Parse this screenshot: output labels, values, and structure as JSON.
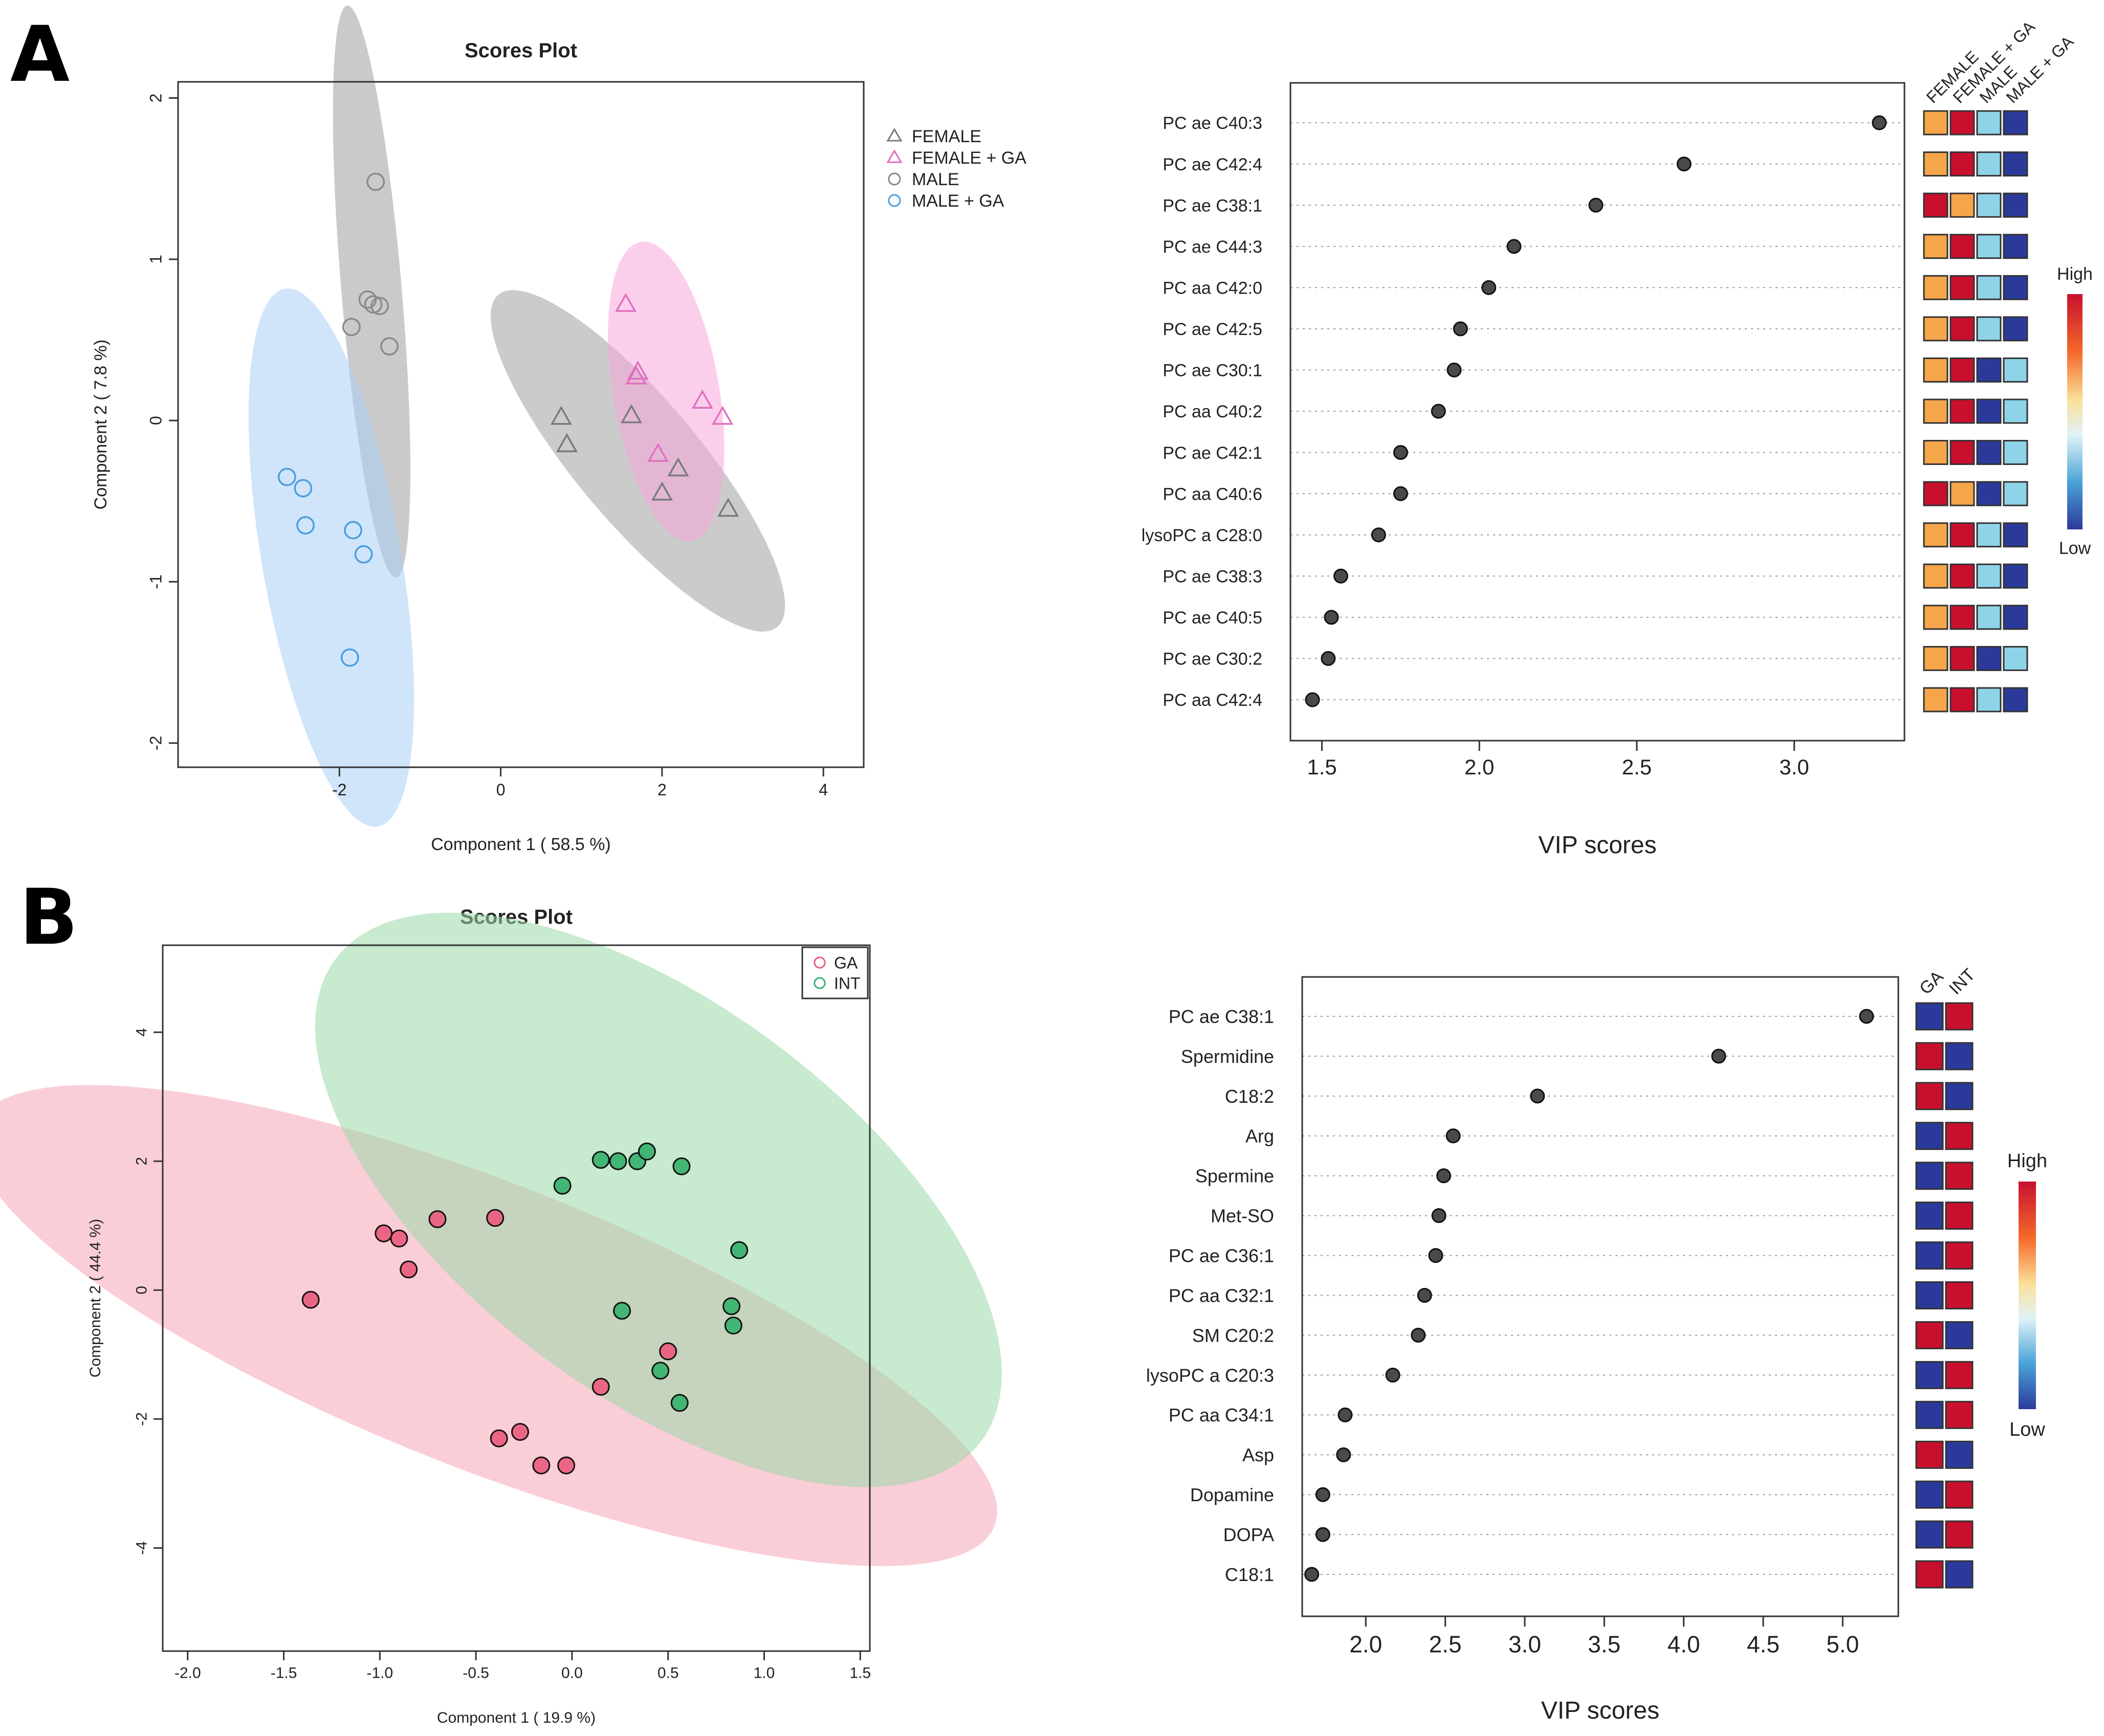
{
  "panels": {
    "a": "A",
    "b": "B"
  },
  "colors": {
    "female": "#7a7a7a",
    "female_ga": "#e070c0",
    "male": "#8a8a8a",
    "male_ga": "#4a9ee0",
    "ga": "#ea6080",
    "int": "#3cb371",
    "heat_dark_red": "#c8102e",
    "heat_orange": "#f5a54a",
    "heat_light_blue": "#8fd3e8",
    "heat_dark_blue": "#2b3a9a"
  },
  "chart_data": [
    {
      "id": "A_scores",
      "type": "scatter",
      "title": "Scores Plot",
      "xlabel": "Component 1 ( 58.5 %)",
      "ylabel": "Component 2 ( 7.8 %)",
      "xlim": [
        -4.0,
        4.5
      ],
      "ylim": [
        -2.15,
        2.1
      ],
      "xticks": [
        -2,
        0,
        2,
        4
      ],
      "yticks": [
        -2,
        -1,
        0,
        1,
        2
      ],
      "grid": false,
      "legend_position": "right",
      "series": [
        {
          "name": "FEMALE",
          "marker": "triangle",
          "color": "#7a7a7a",
          "points": [
            [
              0.75,
              0.02
            ],
            [
              0.82,
              -0.15
            ],
            [
              1.62,
              0.03
            ],
            [
              2.2,
              -0.3
            ],
            [
              2.0,
              -0.45
            ],
            [
              2.82,
              -0.55
            ]
          ],
          "ellipse": {
            "cx": 1.7,
            "cy": -0.25,
            "rx": 2.05,
            "ry": 0.5,
            "angle_deg": -28,
            "fill": "#a0a0a0"
          }
        },
        {
          "name": "FEMALE + GA",
          "marker": "triangle",
          "color": "#e070c0",
          "points": [
            [
              1.55,
              0.72
            ],
            [
              1.7,
              0.3
            ],
            [
              1.68,
              0.27
            ],
            [
              2.5,
              0.12
            ],
            [
              2.75,
              0.02
            ],
            [
              1.95,
              -0.21
            ]
          ],
          "ellipse": {
            "cx": 2.05,
            "cy": 0.18,
            "rx": 1.0,
            "ry": 0.62,
            "angle_deg": -62,
            "fill": "#f7a8dc"
          }
        },
        {
          "name": "MALE",
          "marker": "circle",
          "color": "#8a8a8a",
          "points": [
            [
              -1.55,
              1.48
            ],
            [
              -1.65,
              0.75
            ],
            [
              -1.58,
              0.72
            ],
            [
              -1.5,
              0.71
            ],
            [
              -1.85,
              0.58
            ],
            [
              -1.38,
              0.46
            ]
          ],
          "ellipse": {
            "cx": -1.6,
            "cy": 0.8,
            "rx": 1.8,
            "ry": 0.37,
            "angle_deg": -80,
            "fill": "#9e9e9e"
          }
        },
        {
          "name": "MALE + GA",
          "marker": "circle",
          "color": "#4a9ee0",
          "points": [
            [
              -2.65,
              -0.35
            ],
            [
              -2.45,
              -0.42
            ],
            [
              -2.42,
              -0.65
            ],
            [
              -1.83,
              -0.68
            ],
            [
              -1.7,
              -0.83
            ],
            [
              -1.87,
              -1.47
            ]
          ],
          "ellipse": {
            "cx": -2.1,
            "cy": -0.85,
            "rx": 1.78,
            "ry": 0.82,
            "angle_deg": -67,
            "fill": "#a9cff5"
          }
        }
      ]
    },
    {
      "id": "A_vip",
      "type": "dot",
      "xlabel": "VIP scores",
      "xlim": [
        1.4,
        3.35
      ],
      "xticks": [
        1.5,
        2.0,
        2.5,
        3.0
      ],
      "grid": "horizontal dotted",
      "categories": [
        "PC ae C40:3",
        "PC ae C42:4",
        "PC ae C38:1",
        "PC ae C44:3",
        "PC aa C42:0",
        "PC ae C42:5",
        "PC ae C30:1",
        "PC aa C40:2",
        "PC ae C42:1",
        "PC aa C40:6",
        "lysoPC a C28:0",
        "PC ae C38:3",
        "PC ae C40:5",
        "PC ae C30:2",
        "PC aa C42:4"
      ],
      "values": [
        3.27,
        2.65,
        2.37,
        2.11,
        2.03,
        1.94,
        1.92,
        1.87,
        1.75,
        1.75,
        1.68,
        1.56,
        1.53,
        1.52,
        1.47
      ],
      "heatmap": {
        "columns": [
          "FEMALE",
          "FEMALE + GA",
          "MALE",
          "MALE + GA"
        ],
        "cells": [
          [
            "#f5a54a",
            "#c8102e",
            "#8fd3e8",
            "#2b3a9a"
          ],
          [
            "#f5a54a",
            "#c8102e",
            "#8fd3e8",
            "#2b3a9a"
          ],
          [
            "#c8102e",
            "#f5a54a",
            "#8fd3e8",
            "#2b3a9a"
          ],
          [
            "#f5a54a",
            "#c8102e",
            "#8fd3e8",
            "#2b3a9a"
          ],
          [
            "#f5a54a",
            "#c8102e",
            "#8fd3e8",
            "#2b3a9a"
          ],
          [
            "#f5a54a",
            "#c8102e",
            "#8fd3e8",
            "#2b3a9a"
          ],
          [
            "#f5a54a",
            "#c8102e",
            "#2b3a9a",
            "#8fd3e8"
          ],
          [
            "#f5a54a",
            "#c8102e",
            "#2b3a9a",
            "#8fd3e8"
          ],
          [
            "#f5a54a",
            "#c8102e",
            "#2b3a9a",
            "#8fd3e8"
          ],
          [
            "#c8102e",
            "#f5a54a",
            "#2b3a9a",
            "#8fd3e8"
          ],
          [
            "#f5a54a",
            "#c8102e",
            "#8fd3e8",
            "#2b3a9a"
          ],
          [
            "#f5a54a",
            "#c8102e",
            "#8fd3e8",
            "#2b3a9a"
          ],
          [
            "#f5a54a",
            "#c8102e",
            "#8fd3e8",
            "#2b3a9a"
          ],
          [
            "#f5a54a",
            "#c8102e",
            "#2b3a9a",
            "#8fd3e8"
          ],
          [
            "#f5a54a",
            "#c8102e",
            "#8fd3e8",
            "#2b3a9a"
          ]
        ],
        "scale_high": "High",
        "scale_low": "Low"
      }
    },
    {
      "id": "B_scores",
      "type": "scatter",
      "title": "Scores Plot",
      "xlabel": "Component 1 ( 19.9 %)",
      "ylabel": "Component 2 ( 44.4 %)",
      "xlim": [
        -2.13,
        1.55
      ],
      "ylim": [
        -5.6,
        5.35
      ],
      "xticks": [
        -2.0,
        -1.5,
        -1.0,
        -0.5,
        0.0,
        0.5,
        1.0,
        1.5
      ],
      "xticklabels": [
        "-2.0",
        "-1.5",
        "-1.0",
        "-0.5",
        "0.0",
        "0.5",
        "1.0",
        "1.5"
      ],
      "yticks": [
        -4,
        -2,
        0,
        2,
        4
      ],
      "grid": false,
      "legend_position": "top-right",
      "series": [
        {
          "name": "GA",
          "marker": "circle",
          "color": "#ea6080",
          "points": [
            [
              -1.36,
              -0.15
            ],
            [
              -0.98,
              0.88
            ],
            [
              -0.9,
              0.8
            ],
            [
              -0.85,
              0.32
            ],
            [
              -0.7,
              1.1
            ],
            [
              -0.4,
              1.12
            ],
            [
              0.5,
              -0.95
            ],
            [
              0.15,
              -1.5
            ],
            [
              -0.27,
              -2.2
            ],
            [
              -0.38,
              -2.3
            ],
            [
              -0.16,
              -2.72
            ],
            [
              -0.03,
              -2.72
            ]
          ],
          "ellipse": {
            "cx": -0.45,
            "cy": -0.55,
            "rx": 1.45,
            "ry": 4.35,
            "angle_deg": 33,
            "fill": "#f6a6b6"
          }
        },
        {
          "name": "INT",
          "marker": "circle",
          "color": "#3cb371",
          "points": [
            [
              -0.05,
              1.62
            ],
            [
              0.15,
              2.02
            ],
            [
              0.24,
              2.0
            ],
            [
              0.34,
              2.0
            ],
            [
              0.39,
              2.15
            ],
            [
              0.57,
              1.92
            ],
            [
              0.87,
              0.62
            ],
            [
              0.83,
              -0.25
            ],
            [
              0.84,
              -0.55
            ],
            [
              0.26,
              -0.32
            ],
            [
              0.46,
              -1.25
            ],
            [
              0.56,
              -1.75
            ]
          ],
          "ellipse": {
            "cx": 0.45,
            "cy": 1.4,
            "rx": 1.38,
            "ry": 4.6,
            "angle_deg": 15,
            "fill": "#9ad8a8"
          }
        }
      ]
    },
    {
      "id": "B_vip",
      "type": "dot",
      "xlabel": "VIP scores",
      "xlim": [
        1.6,
        5.35
      ],
      "xticks": [
        2.0,
        2.5,
        3.0,
        3.5,
        4.0,
        4.5,
        5.0
      ],
      "grid": "horizontal dotted",
      "categories": [
        "PC ae C38:1",
        "Spermidine",
        "C18:2",
        "Arg",
        "Spermine",
        "Met-SO",
        "PC ae C36:1",
        "PC aa C32:1",
        "SM C20:2",
        "lysoPC a C20:3",
        "PC aa C34:1",
        "Asp",
        "Dopamine",
        "DOPA",
        "C18:1"
      ],
      "values": [
        5.15,
        4.22,
        3.08,
        2.55,
        2.49,
        2.46,
        2.44,
        2.37,
        2.33,
        2.17,
        1.87,
        1.86,
        1.73,
        1.73,
        1.66
      ],
      "heatmap": {
        "columns": [
          "GA",
          "INT"
        ],
        "cells": [
          [
            "#2b3a9a",
            "#c8102e"
          ],
          [
            "#c8102e",
            "#2b3a9a"
          ],
          [
            "#c8102e",
            "#2b3a9a"
          ],
          [
            "#2b3a9a",
            "#c8102e"
          ],
          [
            "#2b3a9a",
            "#c8102e"
          ],
          [
            "#2b3a9a",
            "#c8102e"
          ],
          [
            "#2b3a9a",
            "#c8102e"
          ],
          [
            "#2b3a9a",
            "#c8102e"
          ],
          [
            "#c8102e",
            "#2b3a9a"
          ],
          [
            "#2b3a9a",
            "#c8102e"
          ],
          [
            "#2b3a9a",
            "#c8102e"
          ],
          [
            "#c8102e",
            "#2b3a9a"
          ],
          [
            "#2b3a9a",
            "#c8102e"
          ],
          [
            "#2b3a9a",
            "#c8102e"
          ],
          [
            "#c8102e",
            "#2b3a9a"
          ]
        ],
        "scale_high": "High",
        "scale_low": "Low"
      }
    }
  ]
}
